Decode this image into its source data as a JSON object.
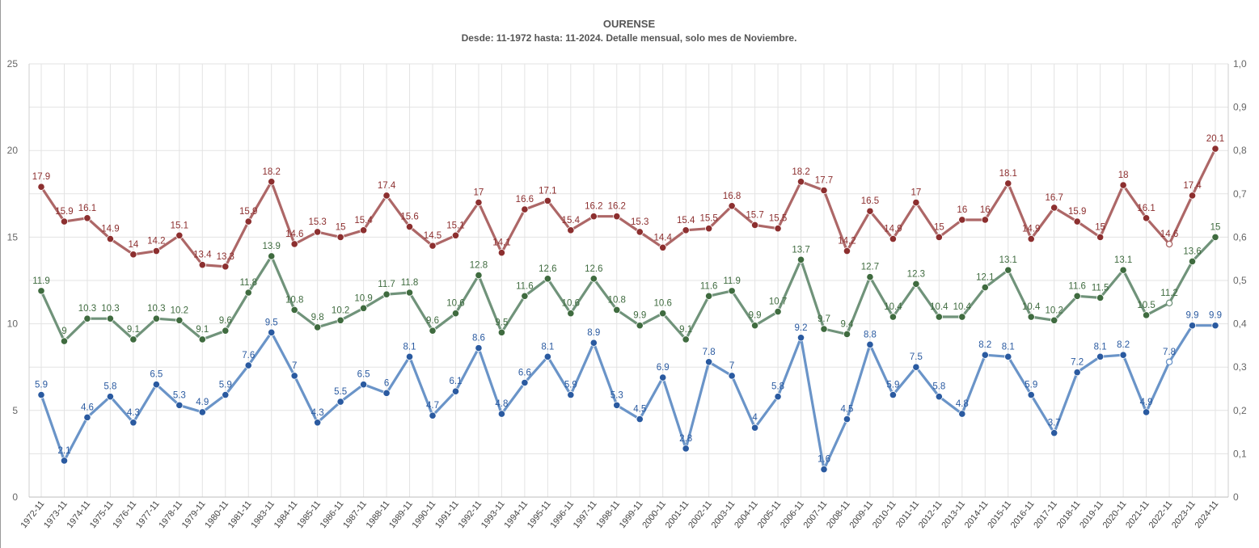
{
  "chart_data": {
    "type": "line",
    "title": "OURENSE",
    "subtitle": "Desde: 11-1972 hasta: 11-2024. Detalle mensual, solo mes de Noviembre.",
    "categories": [
      "1972-11",
      "1973-11",
      "1974-11",
      "1975-11",
      "1976-11",
      "1977-11",
      "1978-11",
      "1979-11",
      "1980-11",
      "1981-11",
      "1983-11",
      "1984-11",
      "1985-11",
      "1986-11",
      "1987-11",
      "1988-11",
      "1989-11",
      "1990-11",
      "1991-11",
      "1992-11",
      "1993-11",
      "1994-11",
      "1995-11",
      "1996-11",
      "1997-11",
      "1998-11",
      "1999-11",
      "2000-11",
      "2001-11",
      "2002-11",
      "2003-11",
      "2004-11",
      "2005-11",
      "2006-11",
      "2007-11",
      "2008-11",
      "2009-11",
      "2010-11",
      "2011-11",
      "2012-11",
      "2013-11",
      "2014-11",
      "2015-11",
      "2016-11",
      "2017-11",
      "2018-11",
      "2019-11",
      "2020-11",
      "2021-11",
      "2022-11",
      "2023-11",
      "2024-11"
    ],
    "series": [
      {
        "color": "#ad6767",
        "label_color": "#8c2f2f",
        "values": [
          17.9,
          15.9,
          16.1,
          14.9,
          14,
          14.2,
          15.1,
          13.4,
          13.3,
          15.9,
          18.2,
          14.6,
          15.3,
          15,
          15.4,
          17.4,
          15.6,
          14.5,
          15.1,
          17,
          14.1,
          16.6,
          17.1,
          15.4,
          16.2,
          16.2,
          15.3,
          14.4,
          15.4,
          15.5,
          16.8,
          15.7,
          15.5,
          18.2,
          17.7,
          14.2,
          16.5,
          14.9,
          17,
          15,
          16,
          16,
          18.1,
          14.9,
          16.7,
          15.9,
          15,
          18,
          16.1,
          14.6,
          17.4,
          20.1
        ]
      },
      {
        "color": "#70937a",
        "label_color": "#3f6b3f",
        "values": [
          11.9,
          9,
          10.3,
          10.3,
          9.1,
          10.3,
          10.2,
          9.1,
          9.6,
          11.8,
          13.9,
          10.8,
          9.8,
          10.2,
          10.9,
          11.7,
          11.8,
          9.6,
          10.6,
          12.8,
          9.5,
          11.6,
          12.6,
          10.6,
          12.6,
          10.8,
          9.9,
          10.6,
          9.1,
          11.6,
          11.9,
          9.9,
          10.7,
          13.7,
          9.7,
          9.4,
          12.7,
          10.4,
          12.3,
          10.4,
          10.4,
          12.1,
          13.1,
          10.4,
          10.2,
          11.6,
          11.5,
          13.1,
          10.5,
          11.2,
          13.6,
          15
        ]
      },
      {
        "color": "#6a94c8",
        "label_color": "#2a5aa0",
        "values": [
          5.9,
          2.1,
          4.6,
          5.8,
          4.3,
          6.5,
          5.3,
          4.9,
          5.9,
          7.6,
          9.5,
          7,
          4.3,
          5.5,
          6.5,
          6,
          8.1,
          4.7,
          6.1,
          8.6,
          4.8,
          6.6,
          8.1,
          5.9,
          8.9,
          5.3,
          4.5,
          6.9,
          2.8,
          7.8,
          7,
          4,
          5.8,
          9.2,
          1.6,
          4.5,
          8.8,
          5.9,
          7.5,
          5.8,
          4.8,
          8.2,
          8.1,
          5.9,
          3.7,
          7.2,
          8.1,
          8.2,
          4.9,
          7.8,
          9.9,
          9.9
        ]
      }
    ],
    "hollow_point_category": "2022-11",
    "y_left": {
      "min": 0,
      "max": 25,
      "ticks": [
        "0",
        "5",
        "10",
        "15",
        "20",
        "25"
      ]
    },
    "y_right": {
      "min": 0,
      "max": 1,
      "ticks": [
        "0",
        "0,1",
        "0,2",
        "0,3",
        "0,4",
        "0,5",
        "0,6",
        "0,7",
        "0,8",
        "0,9",
        "1,0"
      ]
    },
    "grid": true,
    "legend": "none"
  }
}
